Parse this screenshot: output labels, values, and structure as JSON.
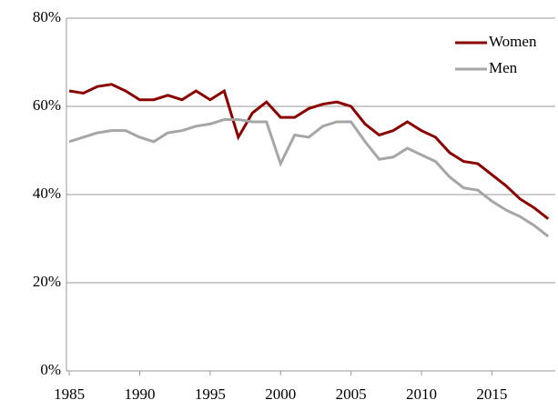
{
  "chart_data": {
    "type": "line",
    "x": [
      1985,
      1986,
      1987,
      1988,
      1989,
      1990,
      1991,
      1992,
      1993,
      1994,
      1995,
      1996,
      1997,
      1998,
      1999,
      2000,
      2001,
      2002,
      2003,
      2004,
      2005,
      2006,
      2007,
      2008,
      2009,
      2010,
      2011,
      2012,
      2013,
      2014,
      2015,
      2016,
      2017,
      2018,
      2019
    ],
    "series": [
      {
        "name": "Women",
        "color": "#8b0000",
        "values": [
          63.5,
          63,
          64.5,
          65,
          63.5,
          61.5,
          61.5,
          62.5,
          61.5,
          63.5,
          61.5,
          63.5,
          53,
          58.5,
          61,
          57.5,
          57.5,
          59.5,
          60.5,
          61,
          60,
          56,
          53.5,
          54.5,
          56.5,
          54.5,
          53,
          49.5,
          47.5,
          47,
          44.5,
          42,
          39,
          37,
          34.5
        ]
      },
      {
        "name": "Men",
        "color": "#a6a6a6",
        "values": [
          52,
          53,
          54,
          54.5,
          54.5,
          53,
          52,
          54,
          54.5,
          55.5,
          56,
          57,
          57,
          56.5,
          56.5,
          47,
          53.5,
          53,
          55.5,
          56.5,
          56.5,
          52,
          48,
          48.5,
          50.5,
          49,
          47.5,
          44,
          41.5,
          41,
          38.5,
          36.5,
          35,
          33,
          30.5
        ]
      }
    ],
    "xlim": [
      1984.8,
      2019.5
    ],
    "xticks": [
      1985,
      1990,
      1995,
      2000,
      2005,
      2010,
      2015
    ],
    "ylim": [
      0,
      80
    ],
    "yticks": [
      {
        "value": 0,
        "label": "0%"
      },
      {
        "value": 20,
        "label": "20%"
      },
      {
        "value": 40,
        "label": "40%"
      },
      {
        "value": 60,
        "label": "60%"
      },
      {
        "value": 80,
        "label": "80%"
      }
    ],
    "grid": true,
    "legend": "top-right"
  }
}
